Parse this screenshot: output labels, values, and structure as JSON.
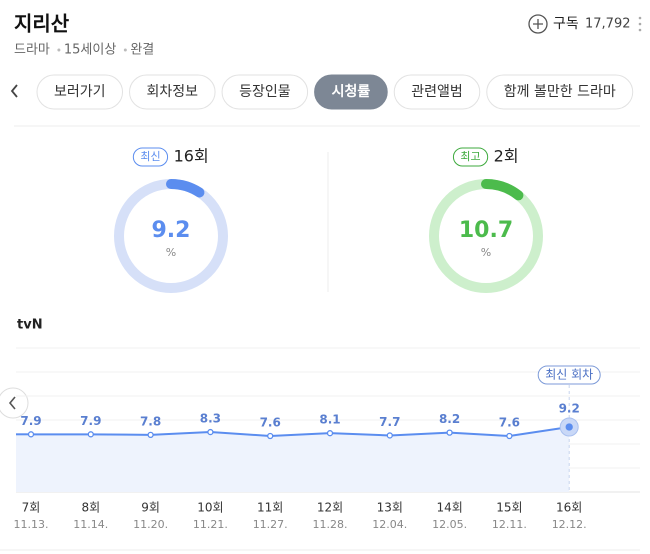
{
  "header": {
    "title": "지리산",
    "subscribe": "구독",
    "subscribers": "17,792",
    "meta": [
      "드라마",
      "15세이상",
      "완결"
    ]
  },
  "tabs": {
    "items": [
      "보러가기",
      "회차정보",
      "등장인물",
      "시청률",
      "관련앨범",
      "함께 볼만한 드라마"
    ],
    "active": 3
  },
  "latest": {
    "badge": "최신",
    "episode": "16회",
    "value": 9.2,
    "unit": "%"
  },
  "best": {
    "badge": "최고",
    "episode": "2회",
    "value": 10.7,
    "unit": "%"
  },
  "chart_data": {
    "type": "line",
    "title": "tvN",
    "color": "#5b8def",
    "categories": [
      "7회",
      "8회",
      "9회",
      "10회",
      "11회",
      "12회",
      "13회",
      "14회",
      "15회",
      "16회"
    ],
    "dates": [
      "11.13.",
      "11.14.",
      "11.20.",
      "11.21.",
      "11.27.",
      "11.28.",
      "12.04.",
      "12.05.",
      "12.11.",
      "12.12."
    ],
    "values": [
      7.9,
      7.9,
      7.8,
      8.3,
      7.6,
      8.1,
      7.7,
      8.2,
      7.6,
      9.2
    ],
    "annotation": "최신 회차"
  }
}
